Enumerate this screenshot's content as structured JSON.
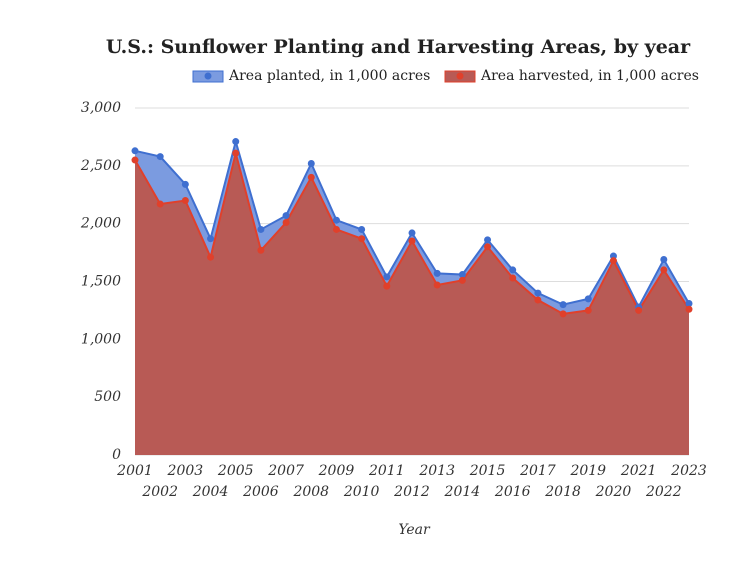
{
  "chart_data": {
    "type": "area",
    "title": "U.S.: Sunflower Planting and Harvesting Areas, by year",
    "x_label": "Year",
    "categories": [
      "2001",
      "2002",
      "2003",
      "2004",
      "2005",
      "2006",
      "2007",
      "2008",
      "2009",
      "2010",
      "2011",
      "2012",
      "2013",
      "2014",
      "2015",
      "2016",
      "2017",
      "2018",
      "2019",
      "2020",
      "2021",
      "2022",
      "2023"
    ],
    "series": [
      {
        "name": "Area planted, in 1,000 acres",
        "color": "#3f6fd0",
        "fill": "#7b9be0",
        "values": [
          2630,
          2580,
          2340,
          1870,
          2710,
          1950,
          2070,
          2520,
          2030,
          1950,
          1540,
          1920,
          1570,
          1560,
          1860,
          1600,
          1400,
          1300,
          1350,
          1720,
          1280,
          1690,
          1310
        ]
      },
      {
        "name": "Area harvested, in 1,000 acres",
        "color": "#e0402b",
        "fill": "#b85a55",
        "values": [
          2550,
          2170,
          2200,
          1710,
          2610,
          1770,
          2010,
          2400,
          1950,
          1870,
          1460,
          1850,
          1470,
          1510,
          1800,
          1530,
          1340,
          1220,
          1250,
          1680,
          1250,
          1600,
          1260
        ]
      }
    ],
    "ylim": [
      0,
      3000
    ],
    "yticks": [
      0,
      500,
      {
        "value": 1000,
        "label": "1,000"
      },
      {
        "value": 1500,
        "label": "1,500"
      },
      {
        "value": 2000,
        "label": "2,000"
      },
      {
        "value": 2500,
        "label": "2,500"
      },
      {
        "value": 3000,
        "label": "3,000"
      }
    ],
    "grid": true
  }
}
